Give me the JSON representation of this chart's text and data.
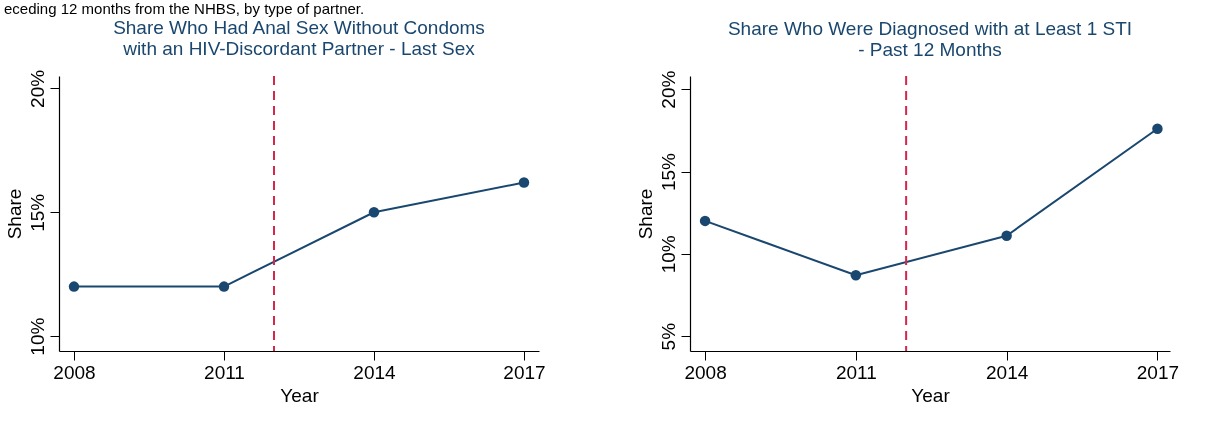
{
  "chart_data": [
    {
      "type": "line",
      "title": "Share Who Had Anal Sex Without Condoms\nwith an HIV-Discordant Partner - Last Sex",
      "xlabel": "Year",
      "ylabel": "Share",
      "annotations": [
        "eceding 12 months from the NHBS, by type of partner."
      ],
      "x": [
        2008,
        2011,
        2014,
        2017
      ],
      "series": [
        {
          "color": "#1a476f",
          "values": [
            12.0,
            12.0,
            15.0,
            16.2
          ]
        }
      ],
      "xlim": [
        2007.7,
        2017.3
      ],
      "xticks": [
        2008,
        2011,
        2014,
        2017
      ],
      "ylim": [
        9.4,
        20.5
      ],
      "yticks": [
        {
          "value": 10,
          "label": "10%"
        },
        {
          "value": 15,
          "label": "15%"
        },
        {
          "value": 20,
          "label": "20%"
        }
      ],
      "ref_lines": [
        {
          "axis": "x",
          "value": 2012,
          "color": "#d7264a",
          "line_style": "dashed"
        }
      ],
      "grid": false,
      "marker": "circle",
      "line_style": "solid"
    },
    {
      "type": "line",
      "title": "Share Who Were Diagnosed with at Least 1 STI\n- Past 12 Months",
      "xlabel": "Year",
      "ylabel": "Share",
      "x": [
        2008,
        2011,
        2014,
        2017
      ],
      "series": [
        {
          "color": "#1a476f",
          "values": [
            12.0,
            8.7,
            11.1,
            17.6
          ]
        }
      ],
      "xlim": [
        2007.7,
        2017.25
      ],
      "xticks": [
        2008,
        2011,
        2014,
        2017
      ],
      "ylim": [
        4.1,
        20.8
      ],
      "yticks": [
        {
          "value": 5,
          "label": "5%"
        },
        {
          "value": 10,
          "label": "10%"
        },
        {
          "value": 15,
          "label": "15%"
        },
        {
          "value": 20,
          "label": "20%"
        }
      ],
      "ref_lines": [
        {
          "axis": "x",
          "value": 2012,
          "color": "#d7264a",
          "line_style": "dashed"
        }
      ],
      "grid": false,
      "marker": "circle",
      "line_style": "solid"
    }
  ]
}
